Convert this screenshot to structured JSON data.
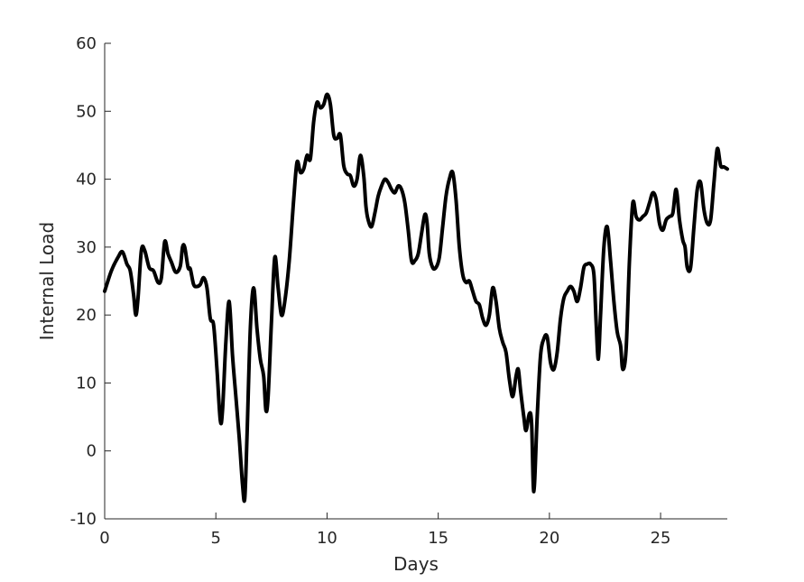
{
  "chart_data": {
    "type": "line",
    "title": "",
    "xlabel": "Days",
    "ylabel": "Internal Load",
    "xlim": [
      0,
      28
    ],
    "ylim": [
      -10,
      60
    ],
    "xticks": [
      0,
      5,
      10,
      15,
      20,
      25
    ],
    "yticks": [
      -10,
      0,
      10,
      20,
      30,
      40,
      50,
      60
    ],
    "grid": false,
    "line_color": "#000000",
    "series": [
      {
        "x": [
          0,
          0.3,
          0.6,
          0.8,
          1.0,
          1.15,
          1.3,
          1.4,
          1.5,
          1.65,
          1.8,
          2.0,
          2.2,
          2.4,
          2.55,
          2.7,
          2.85,
          3.0,
          3.2,
          3.4,
          3.5,
          3.6,
          3.75,
          3.85,
          4.0,
          4.15,
          4.3,
          4.45,
          4.6,
          4.75,
          4.9,
          5.05,
          5.2,
          5.3,
          5.45,
          5.6,
          5.75,
          5.9,
          6.05,
          6.2,
          6.3,
          6.4,
          6.55,
          6.7,
          6.85,
          7.0,
          7.15,
          7.25,
          7.35,
          7.5,
          7.65,
          7.8,
          7.95,
          8.1,
          8.3,
          8.5,
          8.65,
          8.8,
          8.95,
          9.1,
          9.25,
          9.4,
          9.55,
          9.7,
          9.85,
          10.0,
          10.15,
          10.3,
          10.45,
          10.6,
          10.75,
          10.9,
          11.05,
          11.2,
          11.35,
          11.5,
          11.65,
          11.75,
          11.85,
          12.0,
          12.15,
          12.3,
          12.45,
          12.6,
          12.75,
          12.9,
          13.05,
          13.2,
          13.35,
          13.5,
          13.65,
          13.8,
          13.95,
          14.1,
          14.25,
          14.4,
          14.5,
          14.6,
          14.75,
          14.9,
          15.05,
          15.2,
          15.35,
          15.5,
          15.65,
          15.8,
          15.95,
          16.1,
          16.25,
          16.4,
          16.55,
          16.7,
          16.85,
          17.0,
          17.15,
          17.3,
          17.45,
          17.6,
          17.75,
          17.9,
          18.05,
          18.2,
          18.35,
          18.5,
          18.6,
          18.7,
          18.85,
          18.95,
          19.1,
          19.2,
          19.3,
          19.45,
          19.6,
          19.75,
          19.9,
          20.05,
          20.2,
          20.35,
          20.5,
          20.65,
          20.8,
          20.95,
          21.1,
          21.25,
          21.4,
          21.55,
          21.7,
          21.85,
          22.0,
          22.1,
          22.2,
          22.3,
          22.45,
          22.6,
          22.75,
          22.9,
          23.05,
          23.2,
          23.3,
          23.45,
          23.6,
          23.75,
          23.9,
          24.05,
          24.2,
          24.35,
          24.5,
          24.65,
          24.8,
          24.95,
          25.1,
          25.25,
          25.4,
          25.55,
          25.7,
          25.85,
          26.0,
          26.1,
          26.2,
          26.35,
          26.5,
          26.65,
          26.8,
          26.95,
          27.1,
          27.25,
          27.4,
          27.55,
          27.7,
          27.85,
          28.0
        ],
        "y": [
          23.5,
          26.5,
          28.5,
          29.3,
          27.5,
          26.5,
          23.0,
          20.0,
          22.5,
          29.5,
          29.5,
          27.0,
          26.5,
          24.8,
          25.5,
          30.8,
          29.0,
          27.8,
          26.3,
          27.2,
          30.0,
          30.0,
          27.0,
          26.8,
          24.5,
          24.2,
          24.5,
          25.5,
          24.0,
          19.5,
          18.5,
          12.0,
          4.5,
          6.0,
          16.0,
          22.0,
          14.0,
          8.0,
          2.0,
          -5.0,
          -7.0,
          2.0,
          18.0,
          24.0,
          18.0,
          13.5,
          11.0,
          6.0,
          8.0,
          19.0,
          28.5,
          24.0,
          20.0,
          22.0,
          28.0,
          37.0,
          42.5,
          41.0,
          41.5,
          43.5,
          43.0,
          48.5,
          51.3,
          50.5,
          51.0,
          52.5,
          51.0,
          46.5,
          46.0,
          46.5,
          42.0,
          40.8,
          40.5,
          39.0,
          40.0,
          43.5,
          40.5,
          36.0,
          34.0,
          33.0,
          35.0,
          37.5,
          39.0,
          40.0,
          39.5,
          38.5,
          38.0,
          39.0,
          38.5,
          36.5,
          32.5,
          28.0,
          28.0,
          29.0,
          32.0,
          34.8,
          33.5,
          29.0,
          27.0,
          27.0,
          28.5,
          33.0,
          37.5,
          40.0,
          41.0,
          37.0,
          30.0,
          26.0,
          24.8,
          25.0,
          23.5,
          22.0,
          21.5,
          19.5,
          18.5,
          20.0,
          24.0,
          22.0,
          18.0,
          16.0,
          14.5,
          10.5,
          8.0,
          11.0,
          12.0,
          9.0,
          5.0,
          3.0,
          5.5,
          4.0,
          -6.0,
          5.0,
          14.0,
          16.5,
          16.8,
          13.0,
          12.0,
          14.5,
          19.5,
          22.5,
          23.5,
          24.2,
          23.5,
          22.0,
          24.0,
          27.0,
          27.5,
          27.5,
          26.0,
          19.0,
          13.5,
          20.0,
          30.0,
          33.0,
          28.0,
          22.0,
          17.5,
          15.5,
          12.0,
          15.0,
          28.0,
          36.5,
          34.5,
          34.0,
          34.5,
          35.0,
          36.5,
          38.0,
          37.0,
          33.5,
          32.5,
          34.0,
          34.5,
          35.0,
          38.5,
          34.0,
          31.0,
          30.0,
          27.0,
          27.0,
          33.0,
          38.5,
          39.5,
          35.5,
          33.5,
          34.0,
          39.5,
          44.5,
          42.0,
          41.8,
          41.5
        ]
      }
    ]
  }
}
